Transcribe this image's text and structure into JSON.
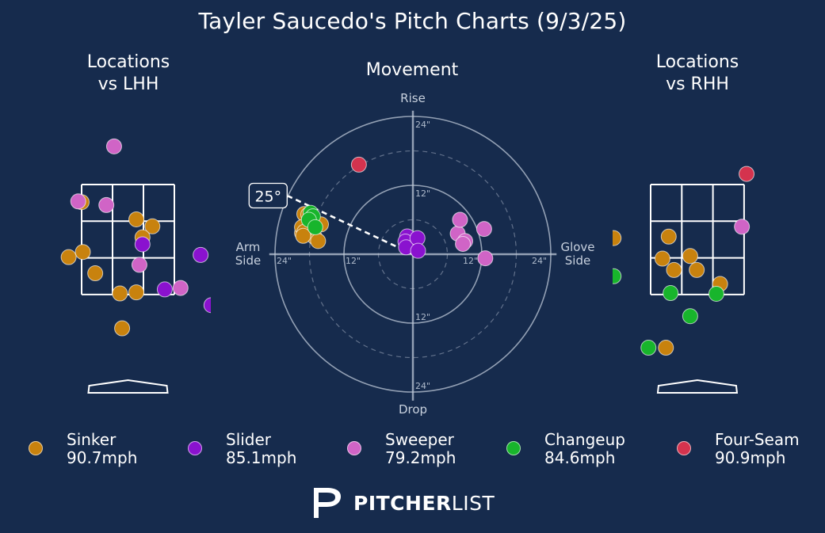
{
  "title": "Tayler Saucedo's Pitch Charts (9/3/25)",
  "panels": {
    "lhh_title": [
      "Locations",
      "vs LHH"
    ],
    "movement_title": "Movement",
    "rhh_title": [
      "Locations",
      "vs RHH"
    ]
  },
  "movement_axes": {
    "top": "Rise",
    "bottom": "Drop",
    "left": [
      "Arm",
      "Side"
    ],
    "right": [
      "Glove",
      "Side"
    ],
    "ring_labels": [
      "12\"",
      "24\""
    ]
  },
  "arm_angle_label": "25°",
  "colors": {
    "background": "#162b4d",
    "Sinker": "#c8820e",
    "Slider": "#8a12cf",
    "Sweeper": "#d064c6",
    "Changeup": "#18b52c",
    "Four-Seam": "#d4334e"
  },
  "legend": [
    {
      "name": "Sinker",
      "speed": "90.7mph"
    },
    {
      "name": "Slider",
      "speed": "85.1mph"
    },
    {
      "name": "Sweeper",
      "speed": "79.2mph"
    },
    {
      "name": "Changeup",
      "speed": "84.6mph"
    },
    {
      "name": "Four-Seam",
      "speed": "90.9mph"
    }
  ],
  "logo": {
    "bold": "PITCHER",
    "light": "LIST"
  },
  "chart_data": [
    {
      "type": "scatter",
      "title": "Locations vs LHH",
      "x_units": "zone-grid (0-3 across strike zone)",
      "y_units": "zone-grid (0-3 down from top of zone)",
      "xlim": [
        -1.0,
        4.2
      ],
      "ylim": [
        -2.3,
        6.8
      ],
      "series": [
        {
          "name": "Sinker",
          "points": [
            [
              0,
              0.48
            ],
            [
              1.77,
              0.95
            ],
            [
              2.29,
              1.14
            ],
            [
              1.97,
              1.44
            ],
            [
              0.04,
              1.84
            ],
            [
              -0.42,
              1.98
            ],
            [
              0.44,
              2.42
            ],
            [
              1.77,
              2.94
            ],
            [
              1.24,
              2.97
            ],
            [
              1.31,
              3.92
            ]
          ]
        },
        {
          "name": "Slider",
          "points": [
            [
              1.97,
              1.63
            ],
            [
              3.85,
              1.92
            ],
            [
              2.69,
              2.86
            ],
            [
              4.2,
              3.29
            ]
          ]
        },
        {
          "name": "Sweeper",
          "points": [
            [
              1.05,
              -1.04
            ],
            [
              -0.11,
              0.46
            ],
            [
              0.8,
              0.56
            ],
            [
              1.87,
              2.19
            ],
            [
              3.2,
              2.82
            ]
          ]
        }
      ]
    },
    {
      "type": "scatter",
      "title": "Movement",
      "x_units": "inches horizontal break (negative = arm side)",
      "y_units": "inches vertical break (positive = rise)",
      "xlim": [
        -26,
        26
      ],
      "ylim": [
        -26,
        26
      ],
      "arm_angle_deg": 25,
      "series": [
        {
          "name": "Sinker",
          "points": [
            [
              -18.9,
              7.0
            ],
            [
              -17.9,
              4.4
            ],
            [
              -19.3,
              3.7
            ],
            [
              -17.1,
              3.0
            ],
            [
              -19.3,
              4.7
            ],
            [
              -18.2,
              6.9
            ],
            [
              -16.0,
              5.2
            ],
            [
              -16.5,
              2.3
            ],
            [
              -18.9,
              3.9
            ],
            [
              -19.1,
              3.2
            ]
          ]
        },
        {
          "name": "Slider",
          "points": [
            [
              -1.0,
              3.1
            ],
            [
              -1.3,
              2.2
            ],
            [
              -1.2,
              1.2
            ],
            [
              0.8,
              2.8
            ],
            [
              0.9,
              0.6
            ]
          ]
        },
        {
          "name": "Sweeper",
          "points": [
            [
              7.8,
              3.6
            ],
            [
              9.1,
              2.3
            ],
            [
              8.2,
              6.0
            ],
            [
              8.7,
              1.8
            ],
            [
              12.4,
              4.4
            ],
            [
              12.6,
              -0.7
            ]
          ]
        },
        {
          "name": "Changeup",
          "points": [
            [
              -17.8,
              7.2
            ],
            [
              -17.4,
              6.6
            ],
            [
              -18.1,
              6.0
            ],
            [
              -17.0,
              4.7
            ]
          ]
        },
        {
          "name": "Four-Seam",
          "points": [
            [
              -9.4,
              15.6
            ]
          ]
        }
      ]
    },
    {
      "type": "scatter",
      "title": "Locations vs RHH",
      "x_units": "zone-grid (0-3 across strike zone)",
      "y_units": "zone-grid (0-3 down from top of zone)",
      "xlim": [
        -1.2,
        3.3
      ],
      "ylim": [
        -2.3,
        6.8
      ],
      "series": [
        {
          "name": "Sinker",
          "points": [
            [
              -1.19,
              1.46
            ],
            [
              0.58,
              1.42
            ],
            [
              0.38,
              2.02
            ],
            [
              1.27,
              1.95
            ],
            [
              0.75,
              2.33
            ],
            [
              1.48,
              2.33
            ],
            [
              2.23,
              2.71
            ],
            [
              0.49,
              4.45
            ]
          ]
        },
        {
          "name": "Sweeper",
          "points": [
            [
              2.93,
              1.15
            ]
          ]
        },
        {
          "name": "Changeup",
          "points": [
            [
              -1.19,
              2.5
            ],
            [
              0.64,
              2.96
            ],
            [
              2.11,
              2.98
            ],
            [
              1.27,
              3.59
            ],
            [
              -0.07,
              4.45
            ]
          ]
        },
        {
          "name": "Four-Seam",
          "points": [
            [
              3.08,
              -0.29
            ]
          ]
        }
      ]
    }
  ]
}
